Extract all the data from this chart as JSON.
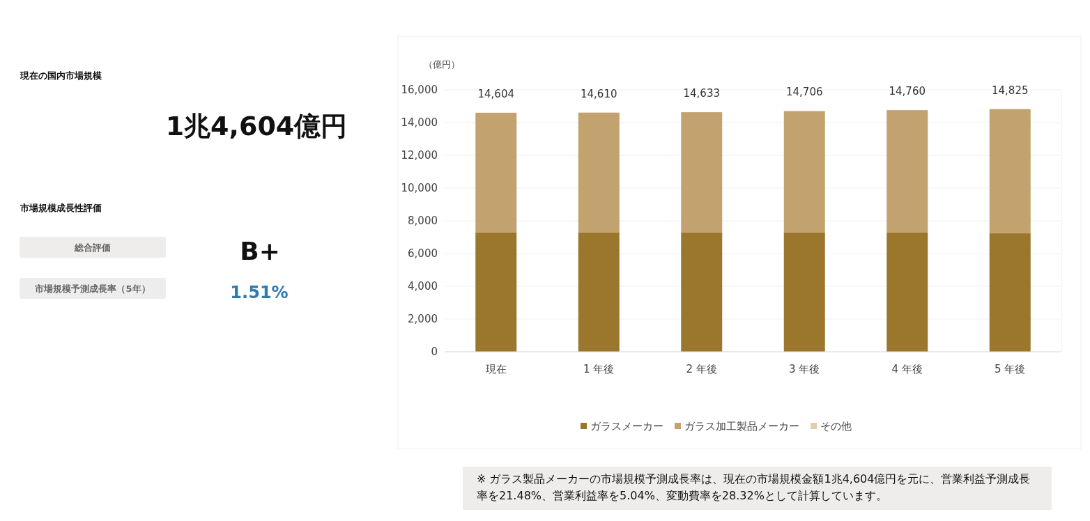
{
  "chart_data": [
    {
      "type": "other",
      "title": "現在の国内市場規模",
      "annotations": [
        "1兆4,604億円",
        "市場規模成長性評価",
        "総合評価",
        "B+",
        "市場規模予測成長率（5年）",
        "1.51%"
      ]
    },
    {
      "type": "bar",
      "stacked": true,
      "ylabel": "（億円）",
      "categories": [
        "現在",
        "1 年後",
        "2 年後",
        "3 年後",
        "4 年後",
        "5 年後"
      ],
      "series": [
        {
          "name": "ガラスメーカー",
          "color": "#9b772e",
          "values": [
            7280,
            7280,
            7280,
            7280,
            7280,
            7240
          ]
        },
        {
          "name": "ガラス加工製品メーカー",
          "color": "#c2a26f",
          "values": [
            7324,
            7330,
            7353,
            7426,
            7480,
            7585
          ]
        },
        {
          "name": "その他",
          "color": "#e0cfae",
          "values": [
            0,
            0,
            0,
            0,
            0,
            0
          ]
        }
      ],
      "ylim": [
        0,
        16000
      ],
      "yticks": [
        {
          "value": 0,
          "label": "0"
        },
        {
          "value": 2000,
          "label": "2,000"
        },
        {
          "value": 4000,
          "label": "4,000"
        },
        {
          "value": 6000,
          "label": "6,000"
        },
        {
          "value": 8000,
          "label": "8,000"
        },
        {
          "value": 10000,
          "label": "10,000"
        },
        {
          "value": 12000,
          "label": "12,000"
        },
        {
          "value": 14000,
          "label": "14,000"
        },
        {
          "value": 16000,
          "label": "16,000"
        }
      ],
      "grid": "y",
      "legend": "bottom",
      "totals": [
        "14,604",
        "14,610",
        "14,633",
        "14,706",
        "14,760",
        "14,825"
      ],
      "annotations": [
        "※ ガラス製品メーカーの市場規模予測成長率は、現在の市場規模金額1兆4,604億円を元に、営業利益予測成長率を21.48%、営業利益率を5.04%、変動費率を28.32%として計算しています。"
      ]
    }
  ]
}
